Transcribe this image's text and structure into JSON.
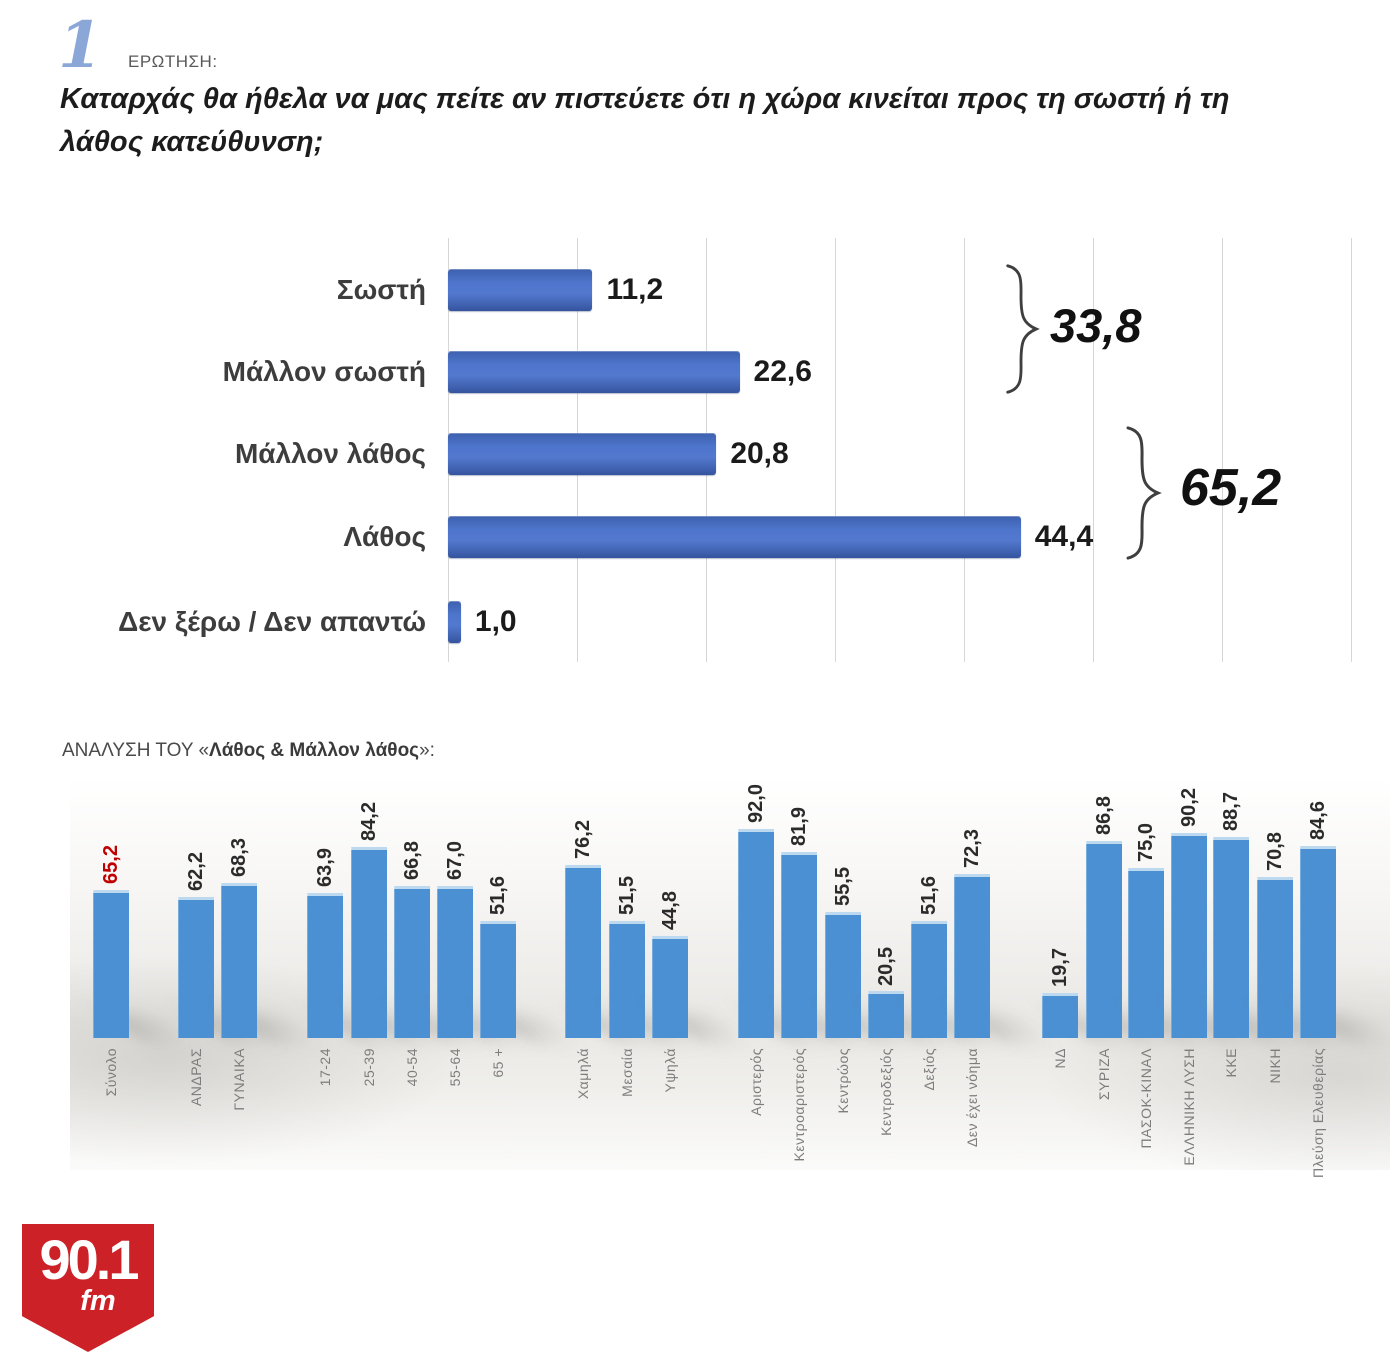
{
  "header": {
    "number": "1",
    "eyebrow": "ΕΡΩΤΗΣΗ:",
    "question_lines": [
      "Καταρχάς θα ήθελα να μας πείτε αν πιστεύετε ότι η χώρα κινείται προς τη σωστή ή τη",
      "λάθος κατεύθυνση;"
    ]
  },
  "analysis_heading": {
    "prefix": "ΑΝΑΛΥΣΗ ΤΟΥ «",
    "emphasis": "Λάθος & Μάλλον λάθος",
    "suffix": "»:"
  },
  "logo": {
    "frequency": "90.1",
    "band": "fm",
    "background_color": "#cb2127"
  },
  "colors": {
    "top_bar_blue": "#4d75cb",
    "bottom_bar_blue": "#4b90d2",
    "highlight_red": "#c00000",
    "grid_gray": "#d6d6d6"
  },
  "chart_data": [
    {
      "id": "direction-question",
      "type": "bar",
      "orientation": "horizontal",
      "categories": [
        "Σωστή",
        "Μάλλον σωστή",
        "Μάλλον λάθος",
        "Λάθος",
        "Δεν ξέρω / Δεν απαντώ"
      ],
      "values": [
        11.2,
        22.6,
        20.8,
        44.4,
        1.0
      ],
      "value_labels": [
        "11,2",
        "22,6",
        "20,8",
        "44,4",
        "1,0"
      ],
      "xlim": [
        0,
        70
      ],
      "grid_step": 10,
      "grid": true,
      "legend": false,
      "annotations": [
        {
          "label": "33,8",
          "covers": [
            "Σωστή",
            "Μάλλον σωστή"
          ]
        },
        {
          "label": "65,2",
          "covers": [
            "Μάλλον λάθος",
            "Λάθος"
          ]
        }
      ]
    },
    {
      "id": "analysis-breakdown",
      "type": "bar",
      "orientation": "vertical",
      "ylim": [
        0,
        100
      ],
      "grid": false,
      "legend": false,
      "groups": [
        {
          "name": "total",
          "bars": [
            {
              "label": "Σύνολο",
              "value": 65.2,
              "value_label": "65,2",
              "highlight": true
            }
          ]
        },
        {
          "name": "gender",
          "bars": [
            {
              "label": "ΑΝΔΡΑΣ",
              "value": 62.2,
              "value_label": "62,2"
            },
            {
              "label": "ΓΥΝΑΙΚΑ",
              "value": 68.3,
              "value_label": "68,3"
            }
          ]
        },
        {
          "name": "age",
          "bars": [
            {
              "label": "17-24",
              "value": 63.9,
              "value_label": "63,9"
            },
            {
              "label": "25-39",
              "value": 84.2,
              "value_label": "84,2"
            },
            {
              "label": "40-54",
              "value": 66.8,
              "value_label": "66,8"
            },
            {
              "label": "55-64",
              "value": 67.0,
              "value_label": "67,0"
            },
            {
              "label": "65 +",
              "value": 51.6,
              "value_label": "51,6"
            }
          ]
        },
        {
          "name": "education",
          "bars": [
            {
              "label": "Χαμηλά",
              "value": 76.2,
              "value_label": "76,2"
            },
            {
              "label": "Μεσαία",
              "value": 51.5,
              "value_label": "51,5"
            },
            {
              "label": "Υψηλά",
              "value": 44.8,
              "value_label": "44,8"
            }
          ]
        },
        {
          "name": "ideology",
          "bars": [
            {
              "label": "Αριστερός",
              "value": 92.0,
              "value_label": "92,0"
            },
            {
              "label": "Κεντροαριστερός",
              "value": 81.9,
              "value_label": "81,9"
            },
            {
              "label": "Κεντρώος",
              "value": 55.5,
              "value_label": "55,5"
            },
            {
              "label": "Κεντροδεξιός",
              "value": 20.5,
              "value_label": "20,5"
            },
            {
              "label": "Δεξιός",
              "value": 51.6,
              "value_label": "51,6"
            },
            {
              "label": "Δεν έχει νόημα",
              "value": 72.3,
              "value_label": "72,3"
            }
          ]
        },
        {
          "name": "party",
          "bars": [
            {
              "label": "ΝΔ",
              "value": 19.7,
              "value_label": "19,7"
            },
            {
              "label": "ΣΥΡΙΖΑ",
              "value": 86.8,
              "value_label": "86,8"
            },
            {
              "label": "ΠΑΣΟΚ-ΚΙΝΑΛ",
              "value": 75.0,
              "value_label": "75,0"
            },
            {
              "label": "ΕΛΛΗΝΙΚΗ ΛΥΣΗ",
              "value": 90.2,
              "value_label": "90,2"
            },
            {
              "label": "ΚΚΕ",
              "value": 88.7,
              "value_label": "88,7"
            },
            {
              "label": "ΝΙΚΗ",
              "value": 70.8,
              "value_label": "70,8"
            },
            {
              "label": "Πλεύση Ελευθερίας",
              "value": 84.6,
              "value_label": "84,6"
            }
          ]
        }
      ]
    }
  ]
}
